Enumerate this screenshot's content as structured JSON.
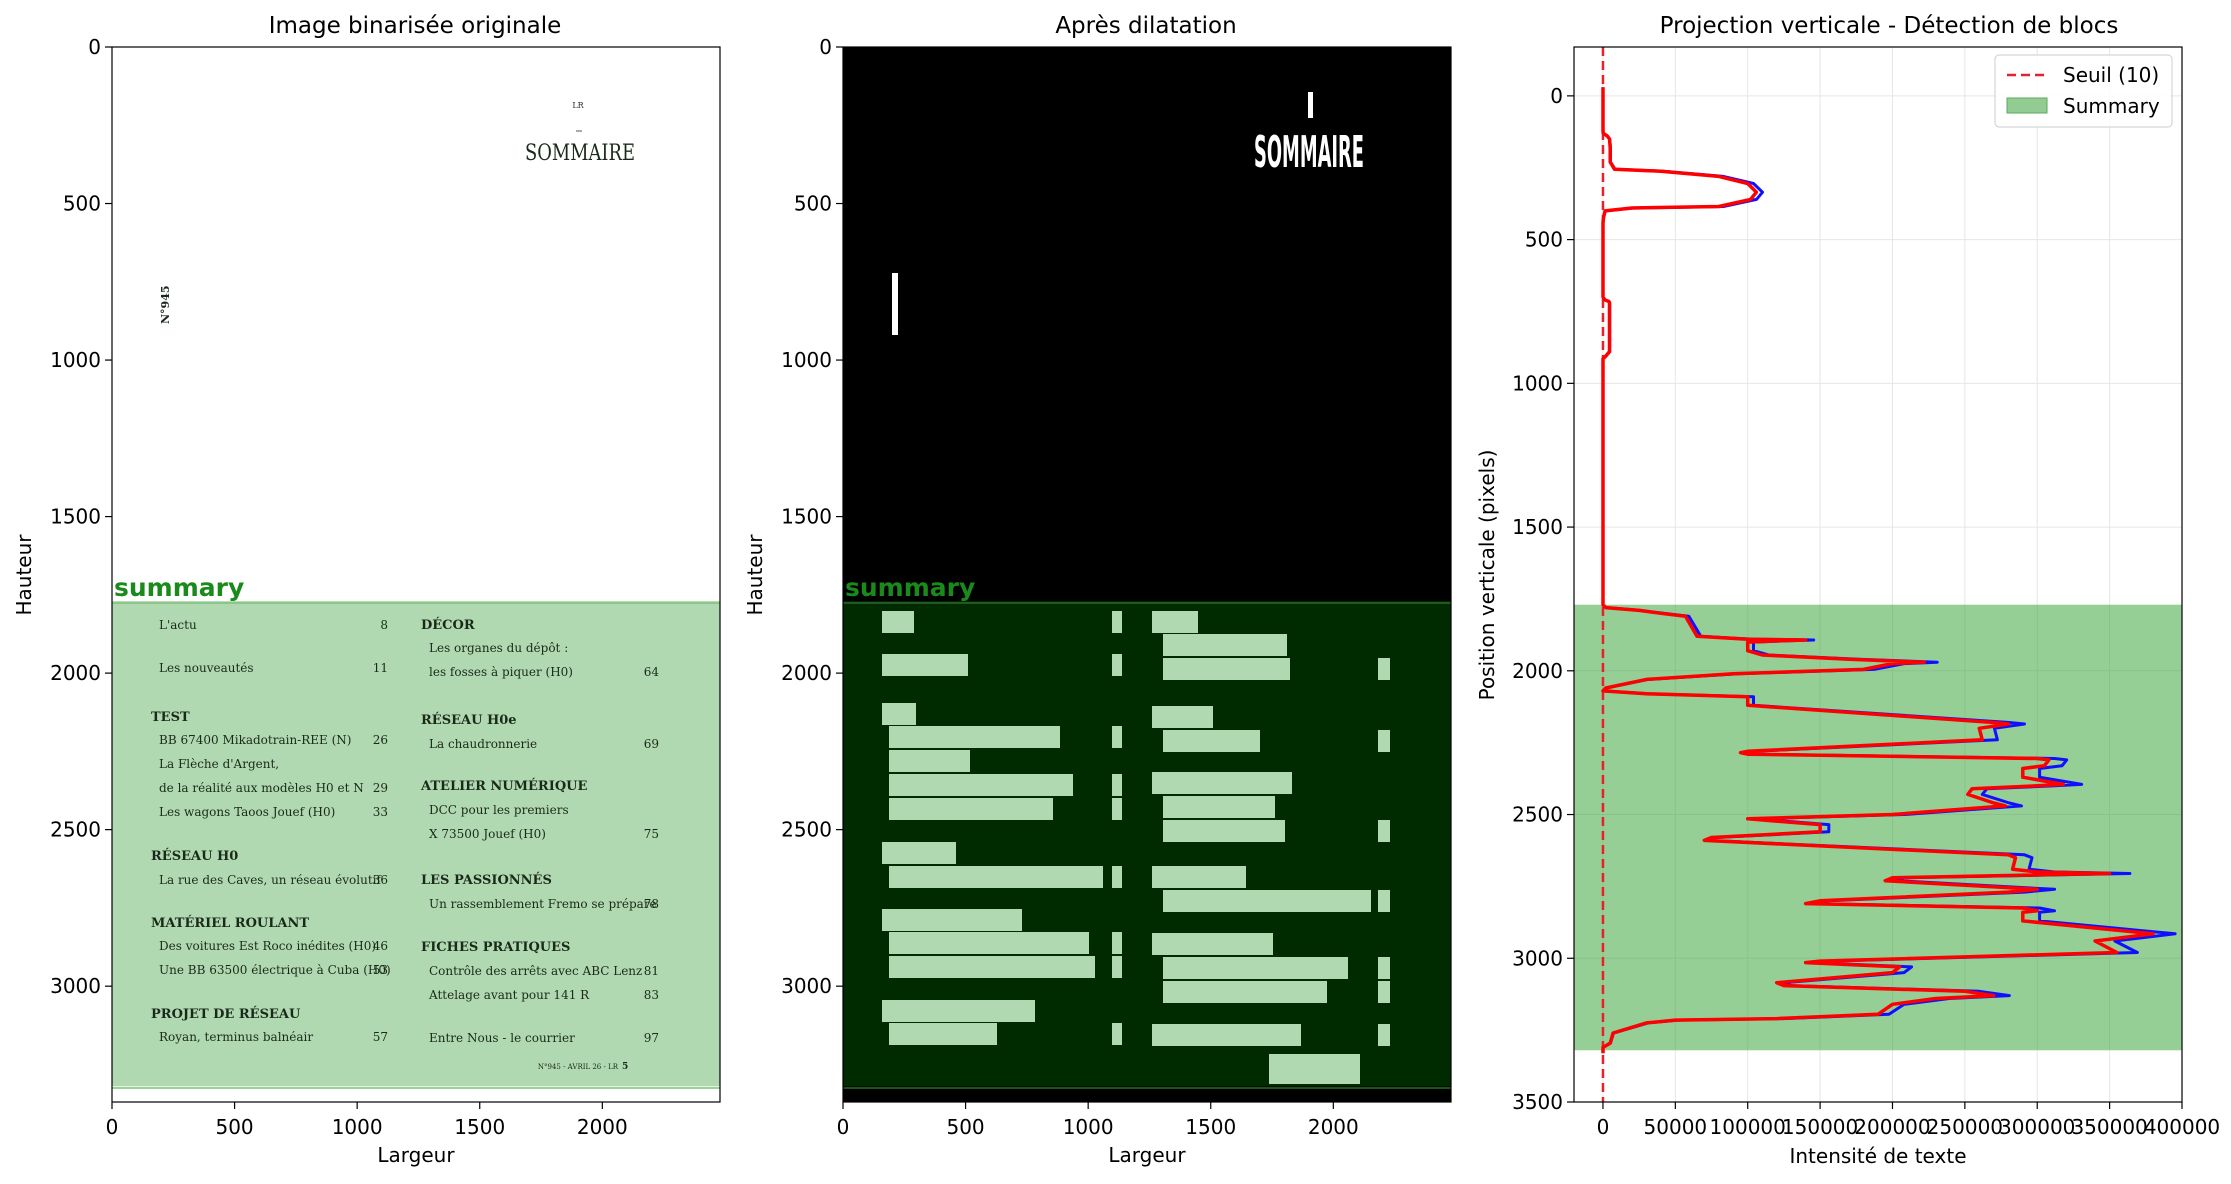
{
  "chart_data": [
    {
      "type": "image",
      "title": "Image binarisée originale",
      "xlabel": "Largeur",
      "ylabel": "Hauteur",
      "xlim": [
        0,
        2480
      ],
      "ylim": [
        3370,
        0
      ],
      "xticks": [
        "0",
        "500",
        "1000",
        "1500",
        "2000"
      ],
      "yticks": [
        "0",
        "500",
        "1000",
        "1500",
        "2000",
        "2500",
        "3000"
      ],
      "region": {
        "label": "summary",
        "y_start": 1770,
        "y_end": 3320,
        "color": "#2ca02c"
      },
      "document": {
        "header_small": "LR",
        "heading": "SOMMAIRE",
        "issue_vertical": "N°945",
        "left_column": [
          {
            "text": "L'actu",
            "page": "8",
            "bold": false
          },
          {
            "text": "Les nouveautés",
            "page": "11",
            "bold": false
          },
          {
            "text": "TEST",
            "page": "",
            "bold": true
          },
          {
            "text": "BB 67400 Mikadotrain-REE (N)",
            "page": "26",
            "bold": false
          },
          {
            "text": "La Flèche d'Argent,",
            "page": "",
            "bold": false
          },
          {
            "text": "de la réalité aux modèles H0 et N",
            "page": "29",
            "bold": false
          },
          {
            "text": "Les wagons Taoos Jouef (H0)",
            "page": "33",
            "bold": false
          },
          {
            "text": "RÉSEAU H0",
            "page": "",
            "bold": true
          },
          {
            "text": "La rue des Caves, un réseau évolutif",
            "page": "36",
            "bold": false
          },
          {
            "text": "MATÉRIEL ROULANT",
            "page": "",
            "bold": true
          },
          {
            "text": "Des voitures Est Roco inédites (H0)",
            "page": "46",
            "bold": false
          },
          {
            "text": "Une BB 63500 électrique à Cuba (H0)",
            "page": "53",
            "bold": false
          },
          {
            "text": "PROJET DE RÉSEAU",
            "page": "",
            "bold": true
          },
          {
            "text": "Royan, terminus balnéair",
            "page": "57",
            "bold": false
          }
        ],
        "right_column": [
          {
            "text": "DÉCOR",
            "page": "",
            "bold": true
          },
          {
            "text": "Les organes du dépôt :",
            "page": "",
            "bold": false
          },
          {
            "text": "les fosses à piquer (H0)",
            "page": "64",
            "bold": false
          },
          {
            "text": "RÉSEAU H0e",
            "page": "",
            "bold": true
          },
          {
            "text": "La chaudronnerie",
            "page": "69",
            "bold": false
          },
          {
            "text": "ATELIER NUMÉRIQUE",
            "page": "",
            "bold": true
          },
          {
            "text": "DCC pour les premiers",
            "page": "",
            "bold": false
          },
          {
            "text": "X 73500 Jouef (H0)",
            "page": "75",
            "bold": false
          },
          {
            "text": "LES PASSIONNÉS",
            "page": "",
            "bold": true
          },
          {
            "text": "Un rassemblement Fremo se prépare",
            "page": "78",
            "bold": false
          },
          {
            "text": "FICHES PRATIQUES",
            "page": "",
            "bold": true
          },
          {
            "text": "Contrôle des arrêts avec ABC Lenz",
            "page": "81",
            "bold": false
          },
          {
            "text": "Attelage avant pour 141 R",
            "page": "83",
            "bold": false
          },
          {
            "text": "Entre Nous - le courrier",
            "page": "97",
            "bold": false
          }
        ],
        "footer": "N°945 - AVRIL 26 - LR",
        "footer_page": "5"
      }
    },
    {
      "type": "image",
      "title": "Après dilatation",
      "xlabel": "Largeur",
      "ylabel": "Hauteur",
      "xlim": [
        0,
        2480
      ],
      "ylim": [
        3370,
        0
      ],
      "xticks": [
        "0",
        "500",
        "1000",
        "1500",
        "2000"
      ],
      "yticks": [
        "0",
        "500",
        "1000",
        "1500",
        "2000",
        "2500",
        "3000"
      ],
      "region": {
        "label": "summary",
        "y_start": 1770,
        "y_end": 3320,
        "color": "#2ca02c"
      },
      "heading": "SOMMAIRE"
    },
    {
      "type": "line",
      "title": "Projection verticale - Détection de blocs",
      "xlabel": "Intensité de texte",
      "ylabel": "Position verticale (pixels)",
      "xlim": [
        -20000,
        400000
      ],
      "ylim": [
        3500,
        -170
      ],
      "grid": true,
      "legend_position": "top-right",
      "xticks": [
        0,
        50000,
        100000,
        150000,
        200000,
        250000,
        300000,
        350000,
        400000
      ],
      "yticks": [
        0,
        500,
        1000,
        1500,
        2000,
        2500,
        3000,
        3500
      ],
      "threshold": {
        "name": "Seuil (10)",
        "value": 10,
        "color": "#e8202a"
      },
      "block": {
        "name": "Summary",
        "y_start": 1770,
        "y_end": 3320,
        "color": "#2ca02c"
      },
      "series": [
        {
          "color": "#ff0000",
          "points": [
            [
              0,
              -30
            ],
            [
              0,
              120
            ],
            [
              200,
              130
            ],
            [
              3000,
              140
            ],
            [
              4500,
              150
            ],
            [
              5000,
              180
            ],
            [
              5000,
              230
            ],
            [
              8000,
              255
            ],
            [
              40000,
              262
            ],
            [
              80000,
              280
            ],
            [
              100000,
              305
            ],
            [
              106000,
              335
            ],
            [
              102000,
              360
            ],
            [
              80000,
              385
            ],
            [
              20000,
              390
            ],
            [
              1500,
              400
            ],
            [
              500,
              420
            ],
            [
              0,
              440
            ],
            [
              0,
              700
            ],
            [
              1500,
              710
            ],
            [
              4000,
              715
            ],
            [
              4500,
              720
            ],
            [
              4500,
              890
            ],
            [
              2000,
              905
            ],
            [
              0,
              915
            ],
            [
              0,
              1770
            ],
            [
              2000,
              1780
            ],
            [
              25000,
              1790
            ],
            [
              40000,
              1800
            ],
            [
              57000,
              1810
            ],
            [
              65000,
              1880
            ],
            [
              100000,
              1890
            ],
            [
              140000,
              1893
            ],
            [
              120000,
              1896
            ],
            [
              100000,
              1900
            ],
            [
              100000,
              1930
            ],
            [
              110000,
              1945
            ],
            [
              170000,
              1960
            ],
            [
              222000,
              1970
            ],
            [
              200000,
              1975
            ],
            [
              180000,
              1995
            ],
            [
              90000,
              2010
            ],
            [
              30000,
              2030
            ],
            [
              2000,
              2060
            ],
            [
              0,
              2070
            ],
            [
              30000,
              2080
            ],
            [
              100000,
              2090
            ],
            [
              100000,
              2120
            ],
            [
              270000,
              2180
            ],
            [
              280000,
              2185
            ],
            [
              260000,
              2200
            ],
            [
              262000,
              2240
            ],
            [
              100000,
              2280
            ],
            [
              95000,
              2285
            ],
            [
              100000,
              2290
            ],
            [
              300000,
              2305
            ],
            [
              308000,
              2310
            ],
            [
              305000,
              2330
            ],
            [
              290000,
              2340
            ],
            [
              290000,
              2370
            ],
            [
              318000,
              2395
            ],
            [
              300000,
              2400
            ],
            [
              255000,
              2410
            ],
            [
              252000,
              2430
            ],
            [
              270000,
              2460
            ],
            [
              278000,
              2470
            ],
            [
              200000,
              2500
            ],
            [
              100000,
              2515
            ],
            [
              150000,
              2535
            ],
            [
              150000,
              2560
            ],
            [
              75000,
              2580
            ],
            [
              70000,
              2590
            ],
            [
              280000,
              2640
            ],
            [
              285000,
              2650
            ],
            [
              283000,
              2690
            ],
            [
              300000,
              2700
            ],
            [
              350000,
              2705
            ],
            [
              300000,
              2710
            ],
            [
              200000,
              2720
            ],
            [
              195000,
              2730
            ],
            [
              300000,
              2760
            ],
            [
              280000,
              2770
            ],
            [
              150000,
              2800
            ],
            [
              140000,
              2810
            ],
            [
              290000,
              2825
            ],
            [
              300000,
              2835
            ],
            [
              290000,
              2840
            ],
            [
              290000,
              2870
            ],
            [
              380000,
              2915
            ],
            [
              340000,
              2940
            ],
            [
              355000,
              2980
            ],
            [
              150000,
              3010
            ],
            [
              140000,
              3015
            ],
            [
              205000,
              3030
            ],
            [
              200000,
              3050
            ],
            [
              120000,
              3085
            ],
            [
              125000,
              3095
            ],
            [
              250000,
              3115
            ],
            [
              270000,
              3130
            ],
            [
              230000,
              3140
            ],
            [
              200000,
              3160
            ],
            [
              190000,
              3195
            ],
            [
              120000,
              3210
            ],
            [
              50000,
              3215
            ],
            [
              30000,
              3225
            ],
            [
              7000,
              3260
            ],
            [
              5000,
              3295
            ],
            [
              0,
              3310
            ],
            [
              0,
              3330
            ]
          ]
        }
      ]
    }
  ]
}
